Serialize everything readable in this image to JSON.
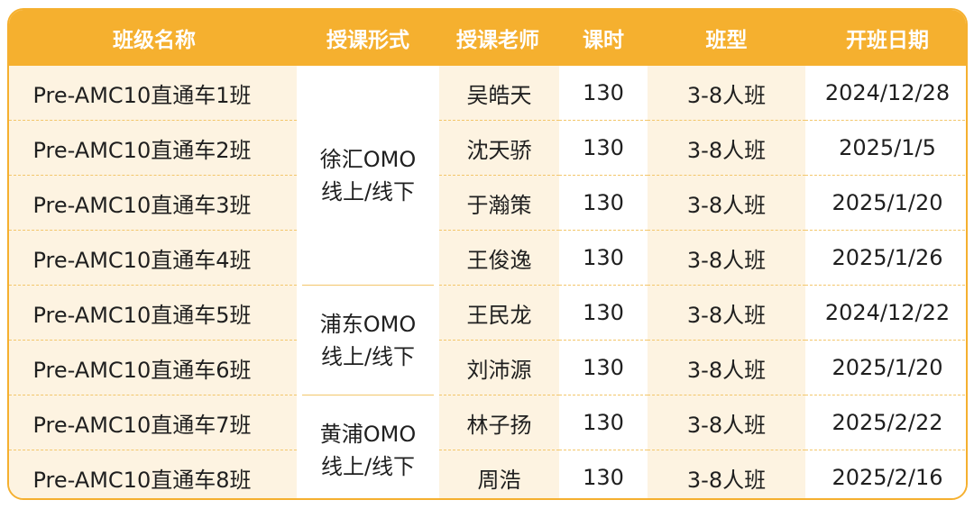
{
  "headers": [
    "班级名称",
    "授课形式",
    "授课老师",
    "课时",
    "班型",
    "开班日期"
  ],
  "rows": [
    {
      "name": "Pre-AMC10直通车1班",
      "teacher": "吴皓天",
      "hours": "130",
      "size": "3-8人班",
      "date": "2024/12/28"
    },
    {
      "name": "Pre-AMC10直通车2班",
      "teacher": "沈天骄",
      "hours": "130",
      "size": "3-8人班",
      "date": "2025/1/5"
    },
    {
      "name": "Pre-AMC10直通车3班",
      "teacher": "于瀚策",
      "hours": "130",
      "size": "3-8人班",
      "date": "2025/1/20"
    },
    {
      "name": "Pre-AMC10直通车4班",
      "teacher": "王俊逸",
      "hours": "130",
      "size": "3-8人班",
      "date": "2025/1/26"
    },
    {
      "name": "Pre-AMC10直通车5班",
      "teacher": "王民龙",
      "hours": "130",
      "size": "3-8人班",
      "date": "2024/12/22"
    },
    {
      "name": "Pre-AMC10直通车6班",
      "teacher": "刘沛源",
      "hours": "130",
      "size": "3-8人班",
      "date": "2025/1/20"
    },
    {
      "name": "Pre-AMC10直通车7班",
      "teacher": "林子扬",
      "hours": "130",
      "size": "3-8人班",
      "date": "2025/2/22"
    },
    {
      "name": "Pre-AMC10直通车8班",
      "teacher": "周浩",
      "hours": "130",
      "size": "3-8人班",
      "date": "2025/2/16"
    }
  ],
  "modes": [
    {
      "line1": "徐汇OMO",
      "line2": "线上/线下"
    },
    {
      "line1": "浦东OMO",
      "line2": "线上/线下"
    },
    {
      "line1": "黄浦OMO",
      "line2": "线上/线下"
    }
  ],
  "colors": {
    "header": "#f5b02f",
    "cream": "#fdf3e1",
    "border": "#f3c66a"
  }
}
